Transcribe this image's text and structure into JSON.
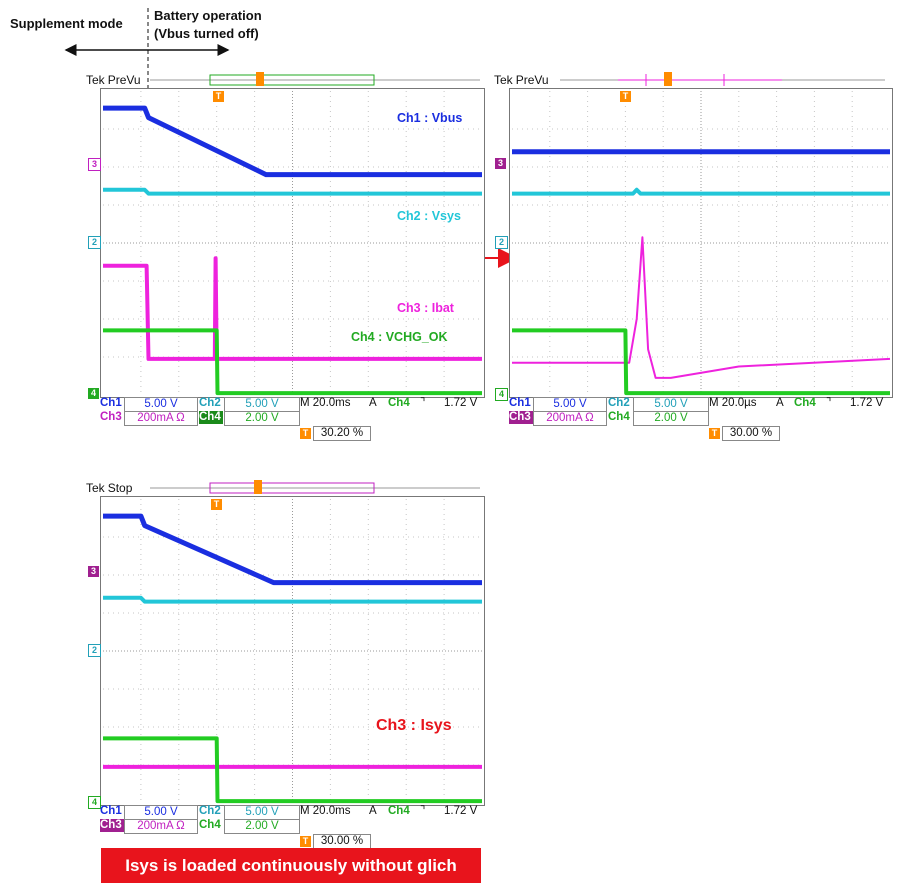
{
  "annotations": {
    "supplement_mode": "Supplement mode",
    "battery_operation": "Battery operation",
    "vbus_off": "(Vbus turned off)",
    "banner": "Isys is loaded continuously  without glich"
  },
  "colors": {
    "ch1": "#1a2ee0",
    "ch2": "#22c6d8",
    "ch3": "#ee22dd",
    "ch4": "#22cc22",
    "highlight": "#e8141c",
    "trigger": "#ff8c00"
  },
  "scopes": [
    {
      "brand": "Tek",
      "mode": "PreVu",
      "labels": {
        "ch1": "Ch1 : Vbus",
        "ch2": "Ch2 : Vsys",
        "ch3": "Ch3 : Ibat",
        "ch4": "Ch4 : VCHG_OK"
      },
      "markers": [
        "3",
        "2",
        "4"
      ],
      "status": {
        "ch1": "Ch1",
        "ch1_scale": "5.00 V",
        "ch2": "Ch2",
        "ch2_scale": "5.00 V",
        "ch3": "Ch3",
        "ch3_scale": "200mA Ω",
        "ch4": "Ch4",
        "ch4_scale": "2.00 V",
        "timebase": "M 20.0ms",
        "trigger_mode": "A",
        "trigger_source": "Ch4",
        "trigger_slope": "⌝",
        "trigger_level": "1.72 V",
        "trigger_position": "30.20 %"
      }
    },
    {
      "brand": "Tek",
      "mode": "PreVu",
      "markers": [
        "3",
        "2",
        "4"
      ],
      "status": {
        "ch1": "Ch1",
        "ch1_scale": "5.00 V",
        "ch2": "Ch2",
        "ch2_scale": "5.00 V",
        "ch3": "Ch3",
        "ch3_scale": "200mA Ω",
        "ch4": "Ch4",
        "ch4_scale": "2.00 V",
        "timebase": "M 20.0µs",
        "trigger_mode": "A",
        "trigger_source": "Ch4",
        "trigger_slope": "⌝",
        "trigger_level": "1.72 V",
        "trigger_position": "30.00 %"
      }
    },
    {
      "brand": "Tek",
      "mode": "Stop",
      "labels": {
        "ch3": "Ch3 : Isys"
      },
      "markers": [
        "3",
        "2",
        "4"
      ],
      "status": {
        "ch1": "Ch1",
        "ch1_scale": "5.00 V",
        "ch2": "Ch2",
        "ch2_scale": "5.00 V",
        "ch3": "Ch3",
        "ch3_scale": "200mA Ω",
        "ch4": "Ch4",
        "ch4_scale": "2.00 V",
        "timebase": "M 20.0ms",
        "trigger_mode": "A",
        "trigger_source": "Ch4",
        "trigger_slope": "⌝",
        "trigger_level": "1.72 V",
        "trigger_position": "30.00 %"
      }
    }
  ],
  "chart_data": [
    {
      "type": "line",
      "grid": true,
      "xlim": [
        0,
        10
      ],
      "ylim": [
        0,
        8
      ],
      "series": [
        {
          "name": "Ch1 : Vbus",
          "x": [
            0,
            1.1,
            1.2,
            4.3,
            10
          ],
          "y": [
            7.55,
            7.55,
            7.3,
            5.8,
            5.8
          ]
        },
        {
          "name": "Ch2 : Vsys",
          "x": [
            0,
            1.1,
            1.2,
            10
          ],
          "y": [
            5.4,
            5.4,
            5.3,
            5.3
          ]
        },
        {
          "name": "Ch3 : Ibat",
          "x": [
            0,
            1.15,
            1.2,
            2.95,
            2.97,
            3.0,
            3.05,
            10
          ],
          "y": [
            3.4,
            3.4,
            0.95,
            0.95,
            3.6,
            0.95,
            0.95,
            0.95
          ]
        },
        {
          "name": "Ch4 : VCHG_OK",
          "x": [
            0,
            3.0,
            3.02,
            10
          ],
          "y": [
            1.7,
            1.7,
            0.05,
            0.05
          ]
        }
      ]
    },
    {
      "type": "line",
      "grid": true,
      "xlim": [
        0,
        10
      ],
      "ylim": [
        0,
        8
      ],
      "series": [
        {
          "x": [
            0,
            10
          ],
          "y": [
            6.4,
            6.4
          ]
        },
        {
          "x": [
            0,
            3.2,
            3.3,
            3.4,
            10
          ],
          "y": [
            5.3,
            5.3,
            5.4,
            5.3,
            5.3
          ]
        },
        {
          "x": [
            0,
            3.1,
            3.3,
            3.45,
            3.6,
            3.8,
            4.2,
            6,
            10
          ],
          "y": [
            0.85,
            0.85,
            2.0,
            4.15,
            1.2,
            0.45,
            0.45,
            0.75,
            0.95
          ]
        },
        {
          "x": [
            0,
            3.0,
            3.02,
            10
          ],
          "y": [
            1.7,
            1.7,
            0.05,
            0.05
          ]
        }
      ]
    },
    {
      "type": "line",
      "grid": true,
      "xlim": [
        0,
        10
      ],
      "ylim": [
        0,
        8
      ],
      "series": [
        {
          "x": [
            0,
            1.0,
            1.1,
            4.5,
            10
          ],
          "y": [
            7.55,
            7.55,
            7.3,
            5.8,
            5.8
          ]
        },
        {
          "x": [
            0,
            1.0,
            1.1,
            10
          ],
          "y": [
            5.4,
            5.4,
            5.3,
            5.3
          ]
        },
        {
          "x": [
            0,
            10
          ],
          "y": [
            0.95,
            0.95
          ]
        },
        {
          "x": [
            0,
            3.0,
            3.02,
            10
          ],
          "y": [
            1.7,
            1.7,
            0.05,
            0.05
          ]
        }
      ]
    }
  ]
}
